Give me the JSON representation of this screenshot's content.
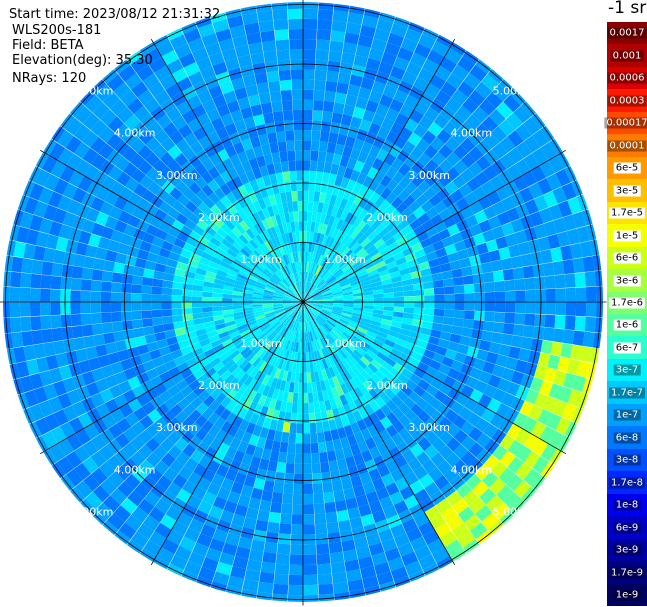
{
  "header": {
    "start_time": "Start time: 2023/08/12 21:31:32",
    "instrument": "WLS200s-181",
    "field": "Field: BETA",
    "elevation": "Elevation(deg): 35.30",
    "nrays": "NRays: 120"
  },
  "chart_data": {
    "type": "heatmap",
    "projection": "polar",
    "rings_km": [
      1,
      2,
      3,
      4,
      5
    ],
    "ring_labels": [
      "1.00km",
      "2.00km",
      "3.00km",
      "4.00km",
      "5.00km"
    ],
    "max_range_km": 5.1,
    "n_rays": 120,
    "spoke_azimuths_deg": [
      0,
      30,
      60,
      90,
      120,
      150,
      180,
      210,
      240,
      270,
      300,
      330
    ],
    "colorbar": {
      "unit_label": "-1 sr",
      "ticks": [
        "0.0017",
        "0.001",
        "0.0006",
        "0.0003",
        "0.00017",
        "0.0001",
        "6e-5",
        "3e-5",
        "1.7e-5",
        "1e-5",
        "6e-6",
        "3e-6",
        "1.7e-6",
        "1e-6",
        "6e-7",
        "3e-7",
        "1.7e-7",
        "1e-7",
        "6e-8",
        "3e-8",
        "1.7e-8",
        "1e-8",
        "6e-9",
        "3e-9",
        "1.7e-9",
        "1e-9"
      ],
      "colors": [
        "#8a0000",
        "#b00000",
        "#d80000",
        "#ff1a00",
        "#ff4a00",
        "#ff7a00",
        "#ff9a00",
        "#ffbf00",
        "#ffe300",
        "#f6ff00",
        "#ccff1a",
        "#a6ff40",
        "#7dff6e",
        "#55ffa0",
        "#2bffd0",
        "#00f0ff",
        "#00c8ff",
        "#00a0ff",
        "#0078ff",
        "#0050ff",
        "#0028ff",
        "#0000f0",
        "#0000c8",
        "#0000a0",
        "#000080",
        "#000060"
      ]
    }
  }
}
